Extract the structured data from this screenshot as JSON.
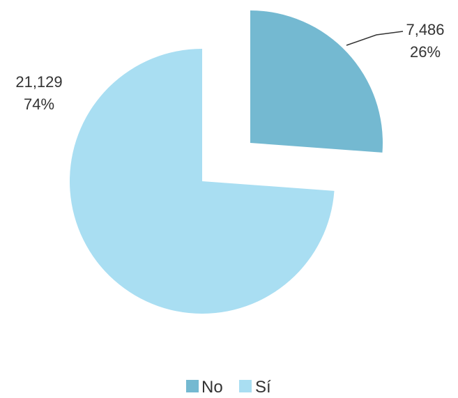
{
  "chart_data": {
    "type": "pie",
    "exploded": true,
    "legend_position": "bottom",
    "slices": [
      {
        "name": "No",
        "value": 7486,
        "value_label": "7,486",
        "percent_label": "26%",
        "color": "#74b9d1"
      },
      {
        "name": "Sí",
        "value": 21129,
        "value_label": "21,129",
        "percent_label": "74%",
        "color": "#a9def2"
      }
    ]
  }
}
